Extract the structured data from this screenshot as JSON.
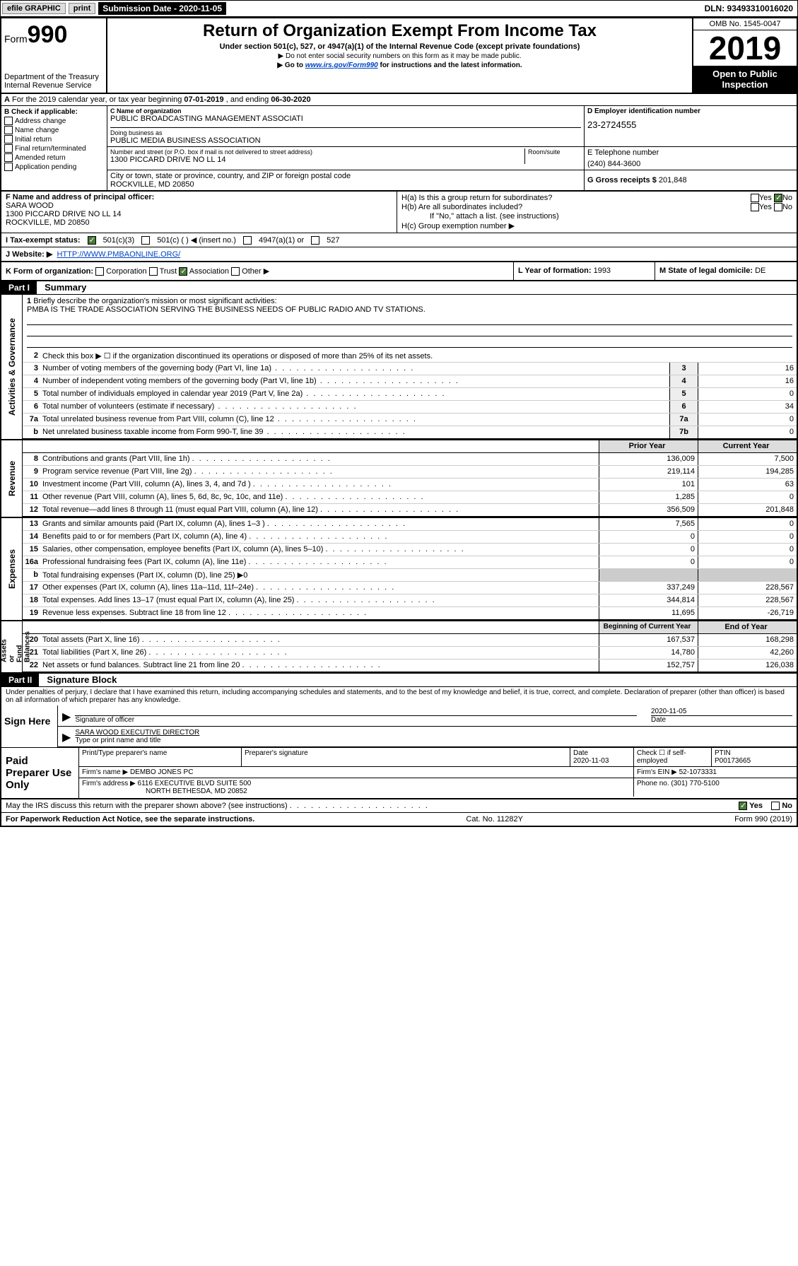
{
  "topbar": {
    "efile": "efile GRAPHIC",
    "print": "print",
    "sub_label": "Submission Date - 2020-11-05",
    "dln": "DLN: 93493310016020"
  },
  "header": {
    "form_prefix": "Form",
    "form_num": "990",
    "dept": "Department of the Treasury\nInternal Revenue Service",
    "title": "Return of Organization Exempt From Income Tax",
    "sub1": "Under section 501(c), 527, or 4947(a)(1) of the Internal Revenue Code (except private foundations)",
    "sub2a": "▶ Do not enter social security numbers on this form as it may be made public.",
    "sub2b_pre": "▶ Go to ",
    "sub2b_link": "www.irs.gov/Form990",
    "sub2b_post": " for instructions and the latest information.",
    "omb": "OMB No. 1545-0047",
    "year": "2019",
    "open1": "Open to Public",
    "open2": "Inspection"
  },
  "period": {
    "text_a": "For the 2019 calendar year, or tax year beginning ",
    "begin": "07-01-2019",
    "text_b": " , and ending ",
    "end": "06-30-2020"
  },
  "boxB": {
    "title": "B Check if applicable:",
    "items": [
      "Address change",
      "Name change",
      "Initial return",
      "Final return/terminated",
      "Amended return",
      "Application pending"
    ]
  },
  "boxC": {
    "name_lbl": "C Name of organization",
    "name": "PUBLIC BROADCASTING MANAGEMENT ASSOCIATI",
    "dba_lbl": "Doing business as",
    "dba": "PUBLIC MEDIA BUSINESS ASSOCIATION",
    "addr_lbl": "Number and street (or P.O. box if mail is not delivered to street address)",
    "room_lbl": "Room/suite",
    "addr": "1300 PICCARD DRIVE NO LL 14",
    "city_lbl": "City or town, state or province, country, and ZIP or foreign postal code",
    "city": "ROCKVILLE, MD  20850"
  },
  "boxD": {
    "lbl": "D Employer identification number",
    "val": "23-2724555"
  },
  "boxE": {
    "lbl": "E Telephone number",
    "val": "(240) 844-3600"
  },
  "boxG": {
    "lbl": "G Gross receipts $",
    "val": "201,848"
  },
  "boxF": {
    "lbl": "F  Name and address of principal officer:",
    "name": "SARA WOOD",
    "addr1": "1300 PICCARD DRIVE NO LL 14",
    "addr2": "ROCKVILLE, MD  20850"
  },
  "boxH": {
    "ha": "H(a)  Is this a group return for subordinates?",
    "hb": "H(b)  Are all subordinates included?",
    "hb_note": "If \"No,\" attach a list. (see instructions)",
    "hc": "H(c)  Group exemption number ▶",
    "yes": "Yes",
    "no": "No"
  },
  "boxI": {
    "lbl": "I   Tax-exempt status:",
    "o1": "501(c)(3)",
    "o2": "501(c) (  ) ◀ (insert no.)",
    "o3": "4947(a)(1) or",
    "o4": "527"
  },
  "boxJ": {
    "lbl": "J   Website: ▶",
    "val": "HTTP://WWW.PMBAONLINE.ORG/"
  },
  "boxK": {
    "lbl": "K Form of organization:",
    "o1": "Corporation",
    "o2": "Trust",
    "o3": "Association",
    "o4": "Other ▶"
  },
  "boxL": {
    "lbl": "L Year of formation:",
    "val": "1993"
  },
  "boxM": {
    "lbl": "M State of legal domicile:",
    "val": "DE"
  },
  "part1": {
    "hdr": "Part I",
    "title": "Summary"
  },
  "mission": {
    "num": "1",
    "lbl": "Briefly describe the organization's mission or most significant activities:",
    "text": "PMBA IS THE TRADE ASSOCIATION SERVING THE BUSINESS NEEDS OF PUBLIC RADIO AND TV STATIONS."
  },
  "lines_top": [
    {
      "n": "2",
      "d": "Check this box ▶ ☐  if the organization discontinued its operations or disposed of more than 25% of its net assets."
    },
    {
      "n": "3",
      "d": "Number of voting members of the governing body (Part VI, line 1a)",
      "c": "3",
      "v": "16"
    },
    {
      "n": "4",
      "d": "Number of independent voting members of the governing body (Part VI, line 1b)",
      "c": "4",
      "v": "16"
    },
    {
      "n": "5",
      "d": "Total number of individuals employed in calendar year 2019 (Part V, line 2a)",
      "c": "5",
      "v": "0"
    },
    {
      "n": "6",
      "d": "Total number of volunteers (estimate if necessary)",
      "c": "6",
      "v": "34"
    },
    {
      "n": "7a",
      "d": "Total unrelated business revenue from Part VIII, column (C), line 12",
      "c": "7a",
      "v": "0"
    },
    {
      "n": "b",
      "d": "Net unrelated business taxable income from Form 990-T, line 39",
      "c": "7b",
      "v": "0"
    }
  ],
  "year_hdr": {
    "prior": "Prior Year",
    "current": "Current Year"
  },
  "revenue": [
    {
      "n": "8",
      "d": "Contributions and grants (Part VIII, line 1h)",
      "p": "136,009",
      "c": "7,500"
    },
    {
      "n": "9",
      "d": "Program service revenue (Part VIII, line 2g)",
      "p": "219,114",
      "c": "194,285"
    },
    {
      "n": "10",
      "d": "Investment income (Part VIII, column (A), lines 3, 4, and 7d )",
      "p": "101",
      "c": "63"
    },
    {
      "n": "11",
      "d": "Other revenue (Part VIII, column (A), lines 5, 6d, 8c, 9c, 10c, and 11e)",
      "p": "1,285",
      "c": "0"
    },
    {
      "n": "12",
      "d": "Total revenue—add lines 8 through 11 (must equal Part VIII, column (A), line 12)",
      "p": "356,509",
      "c": "201,848"
    }
  ],
  "expenses": [
    {
      "n": "13",
      "d": "Grants and similar amounts paid (Part IX, column (A), lines 1–3 )",
      "p": "7,565",
      "c": "0"
    },
    {
      "n": "14",
      "d": "Benefits paid to or for members (Part IX, column (A), line 4)",
      "p": "0",
      "c": "0"
    },
    {
      "n": "15",
      "d": "Salaries, other compensation, employee benefits (Part IX, column (A), lines 5–10)",
      "p": "0",
      "c": "0"
    },
    {
      "n": "16a",
      "d": "Professional fundraising fees (Part IX, column (A), line 11e)",
      "p": "0",
      "c": "0"
    },
    {
      "n": "b",
      "d": "Total fundraising expenses (Part IX, column (D), line 25) ▶0",
      "p": "",
      "c": "",
      "shade": true
    },
    {
      "n": "17",
      "d": "Other expenses (Part IX, column (A), lines 11a–11d, 11f–24e)",
      "p": "337,249",
      "c": "228,567"
    },
    {
      "n": "18",
      "d": "Total expenses. Add lines 13–17 (must equal Part IX, column (A), line 25)",
      "p": "344,814",
      "c": "228,567"
    },
    {
      "n": "19",
      "d": "Revenue less expenses. Subtract line 18 from line 12",
      "p": "11,695",
      "c": "-26,719"
    }
  ],
  "na_hdr": {
    "prior": "Beginning of Current Year",
    "current": "End of Year"
  },
  "netassets": [
    {
      "n": "20",
      "d": "Total assets (Part X, line 16)",
      "p": "167,537",
      "c": "168,298"
    },
    {
      "n": "21",
      "d": "Total liabilities (Part X, line 26)",
      "p": "14,780",
      "c": "42,260"
    },
    {
      "n": "22",
      "d": "Net assets or fund balances. Subtract line 21 from line 20",
      "p": "152,757",
      "c": "126,038"
    }
  ],
  "sidelabels": {
    "gov": "Activities & Governance",
    "rev": "Revenue",
    "exp": "Expenses",
    "na": "Net Assets or\nFund Balances"
  },
  "part2": {
    "hdr": "Part II",
    "title": "Signature Block"
  },
  "perjury": "Under penalties of perjury, I declare that I have examined this return, including accompanying schedules and statements, and to the best of my knowledge and belief, it is true, correct, and complete. Declaration of preparer (other than officer) is based on all information of which preparer has any knowledge.",
  "sign": {
    "here": "Sign Here",
    "sig_lbl": "Signature of officer",
    "date_lbl": "Date",
    "date_val": "2020-11-05",
    "name": "SARA WOOD  EXECUTIVE DIRECTOR",
    "name_lbl": "Type or print name and title"
  },
  "paid": {
    "lbl": "Paid Preparer Use Only",
    "h1": "Print/Type preparer's name",
    "h2": "Preparer's signature",
    "h3": "Date",
    "h3v": "2020-11-03",
    "h4": "Check ☐ if self-employed",
    "h5": "PTIN",
    "h5v": "P00173665",
    "firm_lbl": "Firm's name    ▶",
    "firm": "DEMBO JONES PC",
    "ein_lbl": "Firm's EIN ▶",
    "ein": "52-1073331",
    "addr_lbl": "Firm's address ▶",
    "addr1": "6116 EXECUTIVE BLVD SUITE 500",
    "addr2": "NORTH BETHESDA, MD  20852",
    "phone_lbl": "Phone no.",
    "phone": "(301) 770-5100"
  },
  "footer": {
    "discuss": "May the IRS discuss this return with the preparer shown above? (see instructions)",
    "yes": "Yes",
    "no": "No",
    "pra": "For Paperwork Reduction Act Notice, see the separate instructions.",
    "cat": "Cat. No. 11282Y",
    "form": "Form 990 (2019)"
  },
  "colors": {
    "green": "#4a7a3a",
    "link": "#0045c4"
  }
}
